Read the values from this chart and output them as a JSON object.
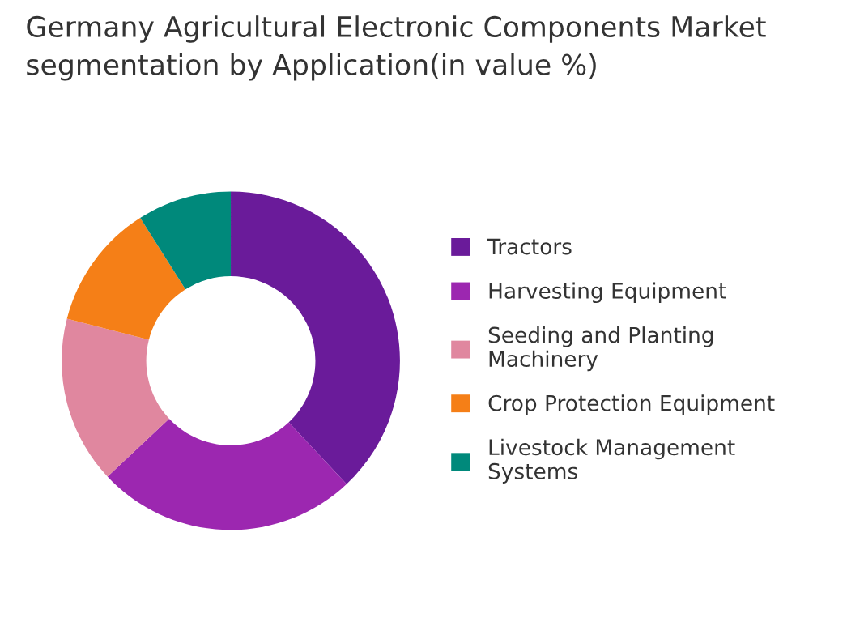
{
  "chart_data": {
    "type": "donut",
    "title": "Germany Agricultural Electronic Components Market\nsegmentation by Application(in value %)",
    "categories": [
      "Tractors",
      "Harvesting Equipment",
      "Seeding and Planting\nMachinery",
      "Crop Protection Equipment",
      "Livestock Management\nSystems"
    ],
    "values": [
      38,
      25,
      16,
      12,
      9
    ],
    "colors": [
      "#6a1b9a",
      "#9c27b0",
      "#e0879f",
      "#f57f17",
      "#00897b"
    ],
    "legend": "right"
  }
}
